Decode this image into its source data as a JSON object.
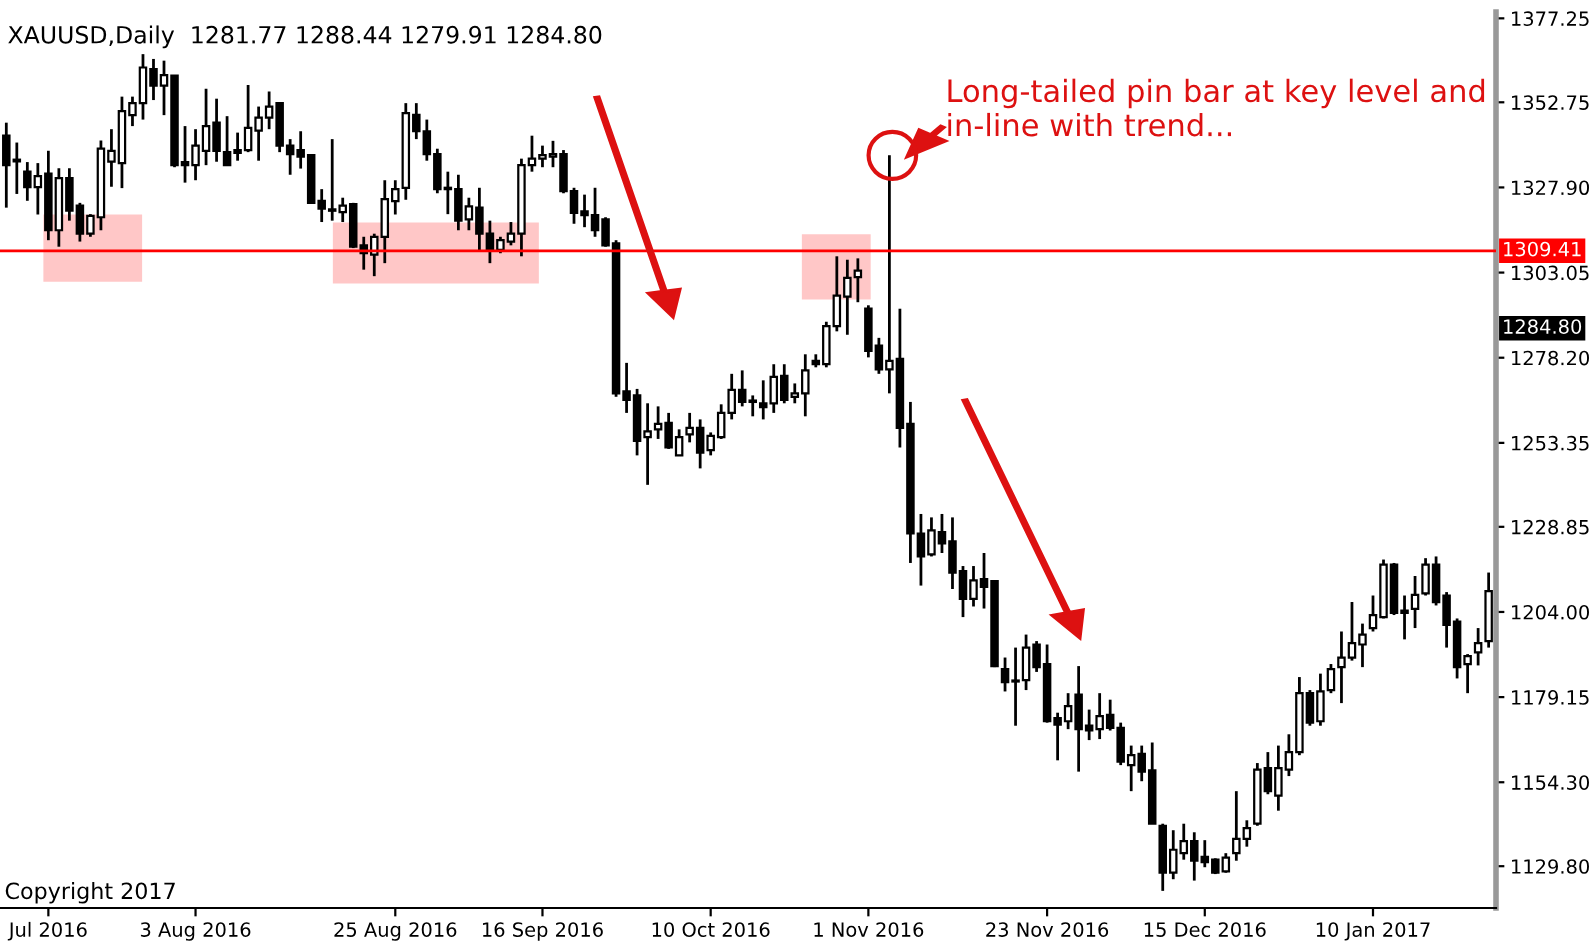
{
  "chart_data": {
    "type": "candlestick",
    "title": "XAUUSD,Daily  1281.77 1288.44 1279.91 1284.80",
    "categories": [
      null,
      null,
      null,
      null,
      "Jul 2016",
      null,
      null,
      null,
      null,
      null,
      null,
      null,
      null,
      null,
      null,
      null,
      null,
      null,
      "3 Aug 2016",
      null,
      null,
      null,
      null,
      null,
      null,
      null,
      null,
      null,
      null,
      null,
      null,
      null,
      null,
      null,
      null,
      null,
      null,
      "25 Aug 2016",
      null,
      null,
      null,
      null,
      null,
      null,
      null,
      null,
      null,
      null,
      null,
      null,
      null,
      "16 Sep 2016",
      null,
      null,
      null,
      null,
      null,
      null,
      null,
      null,
      null,
      null,
      null,
      null,
      null,
      null,
      null,
      "10 Oct 2016",
      null,
      null,
      null,
      null,
      null,
      null,
      null,
      null,
      null,
      null,
      null,
      null,
      null,
      null,
      "1 Nov 2016",
      null,
      null,
      null,
      null,
      null,
      null,
      null,
      null,
      null,
      null,
      null,
      null,
      null,
      null,
      null,
      null,
      "23 Nov 2016",
      null,
      null,
      null,
      null,
      null,
      null,
      null,
      null,
      null,
      null,
      null,
      null,
      null,
      null,
      "15 Dec 2016",
      null,
      null,
      null,
      null,
      null,
      null,
      null,
      null,
      null,
      null,
      null,
      null,
      null,
      null,
      null,
      "10 Jan 2017",
      null,
      null,
      null,
      null,
      null,
      null,
      null,
      null,
      null,
      null,
      null
    ],
    "ohlc": [
      [
        1343.0,
        1346.8,
        1322.0,
        1334.4
      ],
      [
        1335.5,
        1341.0,
        1326.0,
        1336.0
      ],
      [
        1332.5,
        1335.3,
        1324.0,
        1328.0
      ],
      [
        1328.0,
        1335.0,
        1320.0,
        1331.2
      ],
      [
        1331.9,
        1338.6,
        1312.5,
        1315.4
      ],
      [
        1315.4,
        1333.5,
        1310.6,
        1330.6
      ],
      [
        1330.6,
        1333.5,
        1318.2,
        1321.1
      ],
      [
        1322.6,
        1323.4,
        1312.1,
        1314.4
      ],
      [
        1314.4,
        1320.1,
        1313.5,
        1319.6
      ],
      [
        1319.2,
        1341.6,
        1315.4,
        1339.2
      ],
      [
        1335.4,
        1344.9,
        1328.1,
        1338.6
      ],
      [
        1335.0,
        1354.4,
        1327.7,
        1350.2
      ],
      [
        1349.0,
        1354.4,
        1345.8,
        1352.5
      ],
      [
        1352.5,
        1366.8,
        1347.7,
        1362.9
      ],
      [
        1362.4,
        1365.4,
        1353.4,
        1357.6
      ],
      [
        1357.6,
        1364.9,
        1349.0,
        1360.7
      ],
      [
        1360.5,
        1360.5,
        1333.8,
        1334.4
      ],
      [
        1335.3,
        1345.8,
        1329.3,
        1334.4
      ],
      [
        1334.4,
        1344.9,
        1330.0,
        1340.1
      ],
      [
        1338.6,
        1356.7,
        1334.4,
        1345.8
      ],
      [
        1346.8,
        1353.8,
        1335.4,
        1338.6
      ],
      [
        1338.2,
        1348.7,
        1334.4,
        1334.4
      ],
      [
        1338.8,
        1343.9,
        1335.7,
        1338.0
      ],
      [
        1338.8,
        1357.8,
        1338.2,
        1345.3
      ],
      [
        1344.5,
        1351.5,
        1335.7,
        1348.3
      ],
      [
        1348.3,
        1355.9,
        1344.9,
        1351.5
      ],
      [
        1352.5,
        1352.5,
        1338.2,
        1340.1
      ],
      [
        1340.1,
        1342.0,
        1331.6,
        1337.6
      ],
      [
        1338.8,
        1344.3,
        1333.4,
        1336.9
      ],
      [
        1337.3,
        1337.6,
        1323.4,
        1323.4
      ],
      [
        1324.0,
        1327.4,
        1317.8,
        1321.7
      ],
      [
        1321.5,
        1342.0,
        1318.2,
        1321.1
      ],
      [
        1320.7,
        1324.9,
        1317.8,
        1322.6
      ],
      [
        1323.0,
        1323.4,
        1310.2,
        1310.6
      ],
      [
        1311.0,
        1313.5,
        1303.9,
        1308.7
      ],
      [
        1308.3,
        1314.4,
        1302.0,
        1313.5
      ],
      [
        1313.5,
        1330.0,
        1305.8,
        1324.5
      ],
      [
        1323.9,
        1330.0,
        1320.0,
        1327.4
      ],
      [
        1327.8,
        1352.5,
        1324.3,
        1349.6
      ],
      [
        1349.1,
        1352.5,
        1342.0,
        1344.3
      ],
      [
        1344.3,
        1347.7,
        1335.7,
        1337.6
      ],
      [
        1337.6,
        1339.2,
        1326.2,
        1327.4
      ],
      [
        1327.8,
        1332.5,
        1320.1,
        1327.4
      ],
      [
        1327.4,
        1331.6,
        1315.4,
        1318.2
      ],
      [
        1318.6,
        1324.9,
        1315.4,
        1322.4
      ],
      [
        1322.0,
        1327.8,
        1309.1,
        1314.4
      ],
      [
        1314.4,
        1318.2,
        1305.8,
        1309.7
      ],
      [
        1309.7,
        1313.5,
        1308.7,
        1312.5
      ],
      [
        1312.1,
        1317.8,
        1311.0,
        1314.4
      ],
      [
        1314.4,
        1336.3,
        1307.8,
        1334.4
      ],
      [
        1334.4,
        1343.0,
        1332.5,
        1336.3
      ],
      [
        1336.3,
        1340.1,
        1333.8,
        1337.3
      ],
      [
        1336.9,
        1341.5,
        1333.8,
        1337.6
      ],
      [
        1337.6,
        1338.8,
        1326.2,
        1326.8
      ],
      [
        1326.8,
        1327.8,
        1317.3,
        1320.5
      ],
      [
        1320.9,
        1325.8,
        1316.3,
        1319.8
      ],
      [
        1319.8,
        1327.8,
        1313.5,
        1315.4
      ],
      [
        1318.6,
        1319.2,
        1310.6,
        1311.0
      ],
      [
        1311.6,
        1312.5,
        1266.8,
        1267.8
      ],
      [
        1268.4,
        1276.7,
        1262.1,
        1265.9
      ],
      [
        1267.2,
        1269.1,
        1249.7,
        1253.9
      ],
      [
        1255.0,
        1264.9,
        1241.1,
        1256.7
      ],
      [
        1257.3,
        1264.0,
        1254.5,
        1258.9
      ],
      [
        1259.2,
        1262.1,
        1251.6,
        1252.0
      ],
      [
        1249.7,
        1257.3,
        1249.7,
        1255.0
      ],
      [
        1255.8,
        1262.1,
        1253.5,
        1257.7
      ],
      [
        1257.7,
        1260.2,
        1245.9,
        1250.5
      ],
      [
        1251.2,
        1256.4,
        1249.7,
        1255.4
      ],
      [
        1255.0,
        1264.6,
        1254.5,
        1262.1
      ],
      [
        1262.1,
        1273.5,
        1260.2,
        1268.8
      ],
      [
        1268.8,
        1274.5,
        1264.0,
        1265.3
      ],
      [
        1265.7,
        1267.2,
        1261.1,
        1265.3
      ],
      [
        1264.9,
        1271.6,
        1260.2,
        1263.8
      ],
      [
        1264.9,
        1276.3,
        1262.1,
        1272.6
      ],
      [
        1272.9,
        1276.3,
        1264.9,
        1265.9
      ],
      [
        1266.8,
        1270.7,
        1264.9,
        1267.8
      ],
      [
        1267.8,
        1279.2,
        1261.1,
        1274.5
      ],
      [
        1277.3,
        1279.2,
        1275.4,
        1276.3
      ],
      [
        1276.3,
        1288.7,
        1275.4,
        1287.4
      ],
      [
        1287.4,
        1307.8,
        1285.9,
        1296.3
      ],
      [
        1296.0,
        1306.8,
        1284.9,
        1301.5
      ],
      [
        1301.7,
        1307.2,
        1294.4,
        1303.6
      ],
      [
        1292.5,
        1293.5,
        1278.3,
        1280.2
      ],
      [
        1281.7,
        1284.0,
        1273.5,
        1274.8
      ],
      [
        1274.8,
        1337.3,
        1267.8,
        1277.3
      ],
      [
        1277.9,
        1292.5,
        1252.0,
        1257.7
      ],
      [
        1258.9,
        1265.3,
        1218.3,
        1226.9
      ],
      [
        1226.9,
        1232.6,
        1211.7,
        1220.2
      ],
      [
        1220.8,
        1231.6,
        1220.2,
        1227.8
      ],
      [
        1227.3,
        1232.6,
        1221.2,
        1224.0
      ],
      [
        1224.6,
        1231.6,
        1210.7,
        1215.5
      ],
      [
        1215.9,
        1217.4,
        1202.5,
        1207.8
      ],
      [
        1207.8,
        1217.4,
        1205.6,
        1213.2
      ],
      [
        1213.6,
        1221.2,
        1205.0,
        1211.3
      ],
      [
        1213.0,
        1213.0,
        1187.9,
        1188.2
      ],
      [
        1187.3,
        1190.7,
        1180.8,
        1183.5
      ],
      [
        1184.0,
        1193.6,
        1170.8,
        1183.7
      ],
      [
        1184.1,
        1197.4,
        1181.2,
        1193.6
      ],
      [
        1194.5,
        1195.5,
        1186.5,
        1187.9
      ],
      [
        1188.8,
        1194.5,
        1171.7,
        1172.1
      ],
      [
        1173.0,
        1174.6,
        1160.7,
        1171.1
      ],
      [
        1172.1,
        1180.3,
        1169.8,
        1176.5
      ],
      [
        1179.9,
        1188.2,
        1157.4,
        1169.8
      ],
      [
        1170.8,
        1175.5,
        1166.6,
        1169.4
      ],
      [
        1169.8,
        1180.3,
        1166.9,
        1173.6
      ],
      [
        1174.0,
        1178.4,
        1169.4,
        1170.2
      ],
      [
        1170.2,
        1171.7,
        1159.3,
        1160.3
      ],
      [
        1159.3,
        1165.0,
        1151.7,
        1162.2
      ],
      [
        1162.6,
        1165.0,
        1154.6,
        1157.4
      ],
      [
        1157.8,
        1165.9,
        1142.2,
        1142.2
      ],
      [
        1141.6,
        1142.2,
        1122.6,
        1127.9
      ],
      [
        1127.9,
        1140.3,
        1126.0,
        1134.6
      ],
      [
        1133.6,
        1142.2,
        1131.7,
        1137.1
      ],
      [
        1137.1,
        1139.7,
        1125.6,
        1131.4
      ],
      [
        1132.5,
        1137.4,
        1129.5,
        1131.0
      ],
      [
        1131.7,
        1132.1,
        1127.5,
        1127.9
      ],
      [
        1128.3,
        1133.6,
        1127.9,
        1132.3
      ],
      [
        1133.6,
        1151.7,
        1131.4,
        1137.8
      ],
      [
        1137.8,
        1143.2,
        1135.5,
        1140.9
      ],
      [
        1142.2,
        1159.9,
        1141.6,
        1158.0
      ],
      [
        1158.4,
        1163.1,
        1150.8,
        1151.7
      ],
      [
        1150.4,
        1165.0,
        1146.0,
        1158.4
      ],
      [
        1158.0,
        1168.3,
        1156.1,
        1163.1
      ],
      [
        1163.1,
        1185.0,
        1162.2,
        1180.3
      ],
      [
        1180.3,
        1181.2,
        1170.8,
        1171.7
      ],
      [
        1172.1,
        1186.0,
        1170.8,
        1180.8
      ],
      [
        1181.2,
        1188.8,
        1180.3,
        1187.3
      ],
      [
        1187.9,
        1198.3,
        1177.4,
        1190.7
      ],
      [
        1190.7,
        1206.9,
        1189.8,
        1194.9
      ],
      [
        1194.5,
        1200.6,
        1187.9,
        1197.4
      ],
      [
        1199.3,
        1208.8,
        1198.3,
        1203.1
      ],
      [
        1202.5,
        1219.3,
        1202.1,
        1217.8
      ],
      [
        1217.8,
        1218.3,
        1203.1,
        1203.7
      ],
      [
        1204.4,
        1208.8,
        1196.0,
        1203.7
      ],
      [
        1204.9,
        1214.5,
        1199.3,
        1209.0
      ],
      [
        1209.4,
        1219.7,
        1208.8,
        1217.8
      ],
      [
        1217.8,
        1220.2,
        1205.9,
        1206.9
      ],
      [
        1208.8,
        1209.8,
        1193.6,
        1200.2
      ],
      [
        1201.2,
        1202.1,
        1184.6,
        1187.9
      ],
      [
        1188.8,
        1191.7,
        1180.3,
        1191.1
      ],
      [
        1192.2,
        1199.3,
        1188.4,
        1194.9
      ],
      [
        1195.5,
        1215.5,
        1193.6,
        1210.1
      ]
    ],
    "ylim": [
      1117.6,
      1379.1
    ],
    "yticks": [
      {
        "value": 1377.25,
        "label": "1377.25"
      },
      {
        "value": 1352.75,
        "label": "1352.75"
      },
      {
        "value": 1327.9,
        "label": "1327.90"
      },
      {
        "value": 1303.05,
        "label": "1303.05"
      },
      {
        "value": 1278.2,
        "label": "1278.20"
      },
      {
        "value": 1253.35,
        "label": "1253.35"
      },
      {
        "value": 1228.85,
        "label": "1228.85"
      },
      {
        "value": 1204.0,
        "label": "1204.00"
      },
      {
        "value": 1179.15,
        "label": "1179.15"
      },
      {
        "value": 1154.3,
        "label": "1154.30"
      },
      {
        "value": 1129.8,
        "label": "1129.80"
      }
    ],
    "ref_lines": [
      {
        "axis": "y",
        "value": 1309.41,
        "label": "1309.41",
        "color": "#ff0000"
      }
    ],
    "annotations": [
      "Long-tailed pin bar at key level and in-line with trend...",
      "Copyright 2017",
      "1284.80"
    ]
  }
}
